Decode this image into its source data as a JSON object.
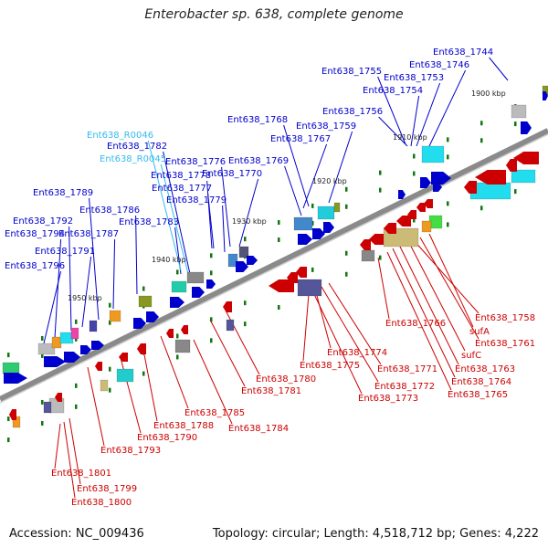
{
  "title": "Enterobacter sp. 638, complete genome",
  "footer": {
    "accession": "Accession: NC_009436",
    "summary": "Topology: circular; Length: 4,518,712 bp; Genes: 4,222"
  },
  "colors": {
    "forward": "#0000cc",
    "reverse": "#cc0000",
    "rna": "#33bbee",
    "backbone": "#8a8a8a",
    "tick": "#117711"
  },
  "kbp_marks": [
    "1900 kbp",
    "1910 kbp",
    "1920 kbp",
    "1930 kbp",
    "1940 kbp",
    "1950 kbp"
  ],
  "labels_forward": [
    "Ent638_1744",
    "Ent638_1746",
    "Ent638_1755",
    "Ent638_1753",
    "Ent638_1754",
    "Ent638_1756",
    "Ent638_1768",
    "Ent638_1759",
    "Ent638_1767",
    "Ent638_1782",
    "Ent638_1776",
    "Ent638_1769",
    "Ent638_1778",
    "Ent638_1770",
    "Ent638_1789",
    "Ent638_1777",
    "Ent638_1779",
    "Ent638_1786",
    "Ent638_1792",
    "Ent638_1783",
    "Ent638_1794",
    "Ent638_1787",
    "Ent638_1791",
    "Ent638_1796"
  ],
  "labels_rna": [
    "Ent638_R0046",
    "Ent638_R0045"
  ],
  "labels_reverse": [
    "Ent638_1758",
    "Ent638_1766",
    "sufA",
    "Ent638_1761",
    "Ent638_1774",
    "sufC",
    "Ent638_1763",
    "Ent638_1775",
    "Ent638_1771",
    "Ent638_1764",
    "Ent638_1780",
    "Ent638_1772",
    "Ent638_1765",
    "Ent638_1773",
    "Ent638_1781",
    "Ent638_1785",
    "Ent638_1784",
    "Ent638_1788",
    "Ent638_1790",
    "Ent638_1793",
    "Ent638_1801",
    "Ent638_1799",
    "Ent638_1800"
  ]
}
